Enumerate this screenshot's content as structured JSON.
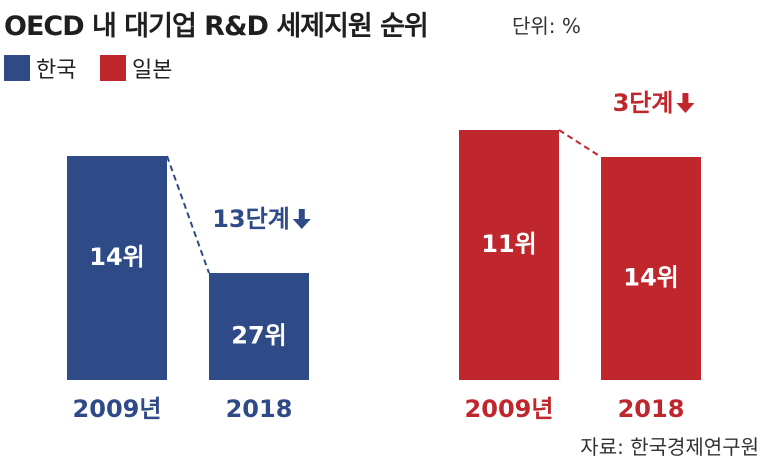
{
  "title": "OECD 내 대기업 R&D 세제지원 순위",
  "unit": "단위: %",
  "legend": [
    {
      "label": "한국",
      "color": "#2e4a87"
    },
    {
      "label": "일본",
      "color": "#c0272d"
    }
  ],
  "source": "자료: 한국경제연구원",
  "chart_data": {
    "type": "bar",
    "categories": [
      "2009년",
      "2018"
    ],
    "series": [
      {
        "name": "한국",
        "values": [
          14,
          27
        ],
        "value_labels": [
          "14위",
          "27위"
        ],
        "change_label": "13단계",
        "color": "#2e4a87"
      },
      {
        "name": "일본",
        "values": [
          11,
          14
        ],
        "value_labels": [
          "11위",
          "14위"
        ],
        "change_label": "3단계",
        "color": "#c0272d"
      }
    ],
    "ylabel": "",
    "xlabel": "",
    "grid": false,
    "legend_position": "top-left"
  }
}
